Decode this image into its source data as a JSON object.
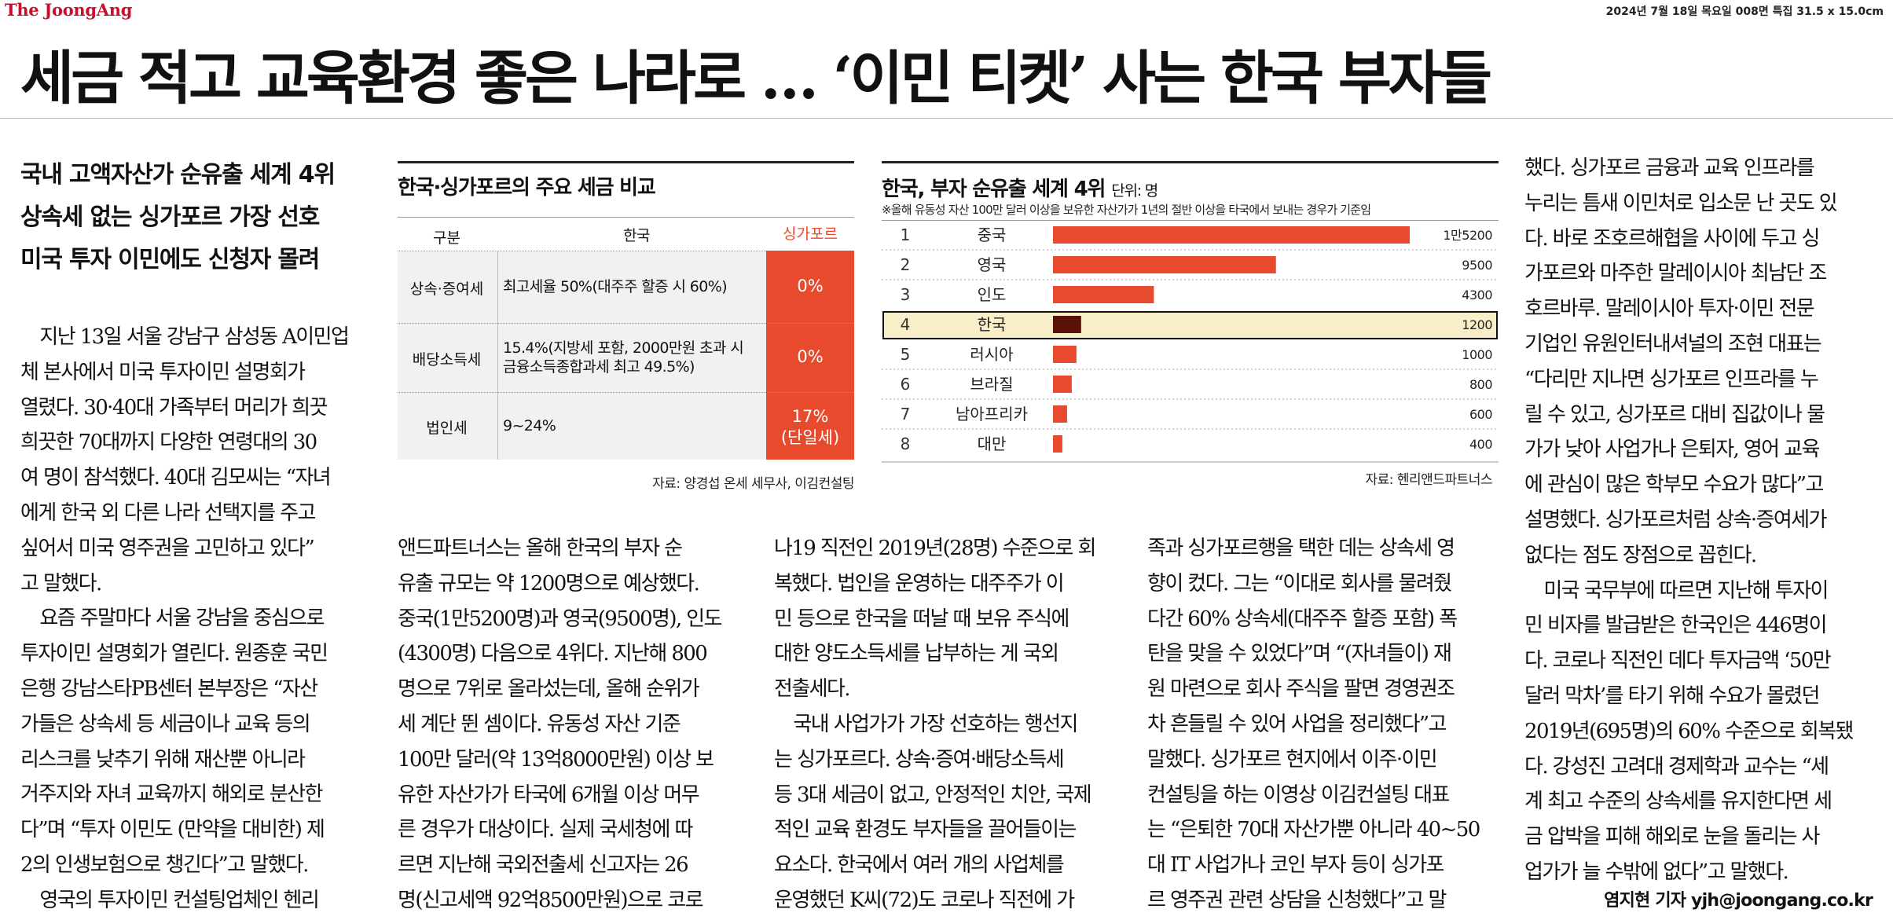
{
  "masthead": {
    "brand": "The JoongAng",
    "dateline": "2024년 7월 18일 목요일 008면 특집 31.5 x 15.0cm"
  },
  "headline": "세금 적고 교육환경 좋은 나라로 … ‘이민 티켓’ 사는 한국 부자들",
  "subheads": [
    "국내 고액자산가 순유출 세계 4위",
    "상속세 없는 싱가포르 가장 선호",
    "미국 투자 이민에도 신청자 몰려"
  ],
  "body": {
    "col1": [
      "　지난 13일 서울 강남구 삼성동 A이민업",
      "체 본사에서 미국 투자이민 설명회가",
      "열렸다. 30·40대 가족부터 머리가 희끗",
      "희끗한 70대까지 다양한 연령대의 30",
      "여 명이 참석했다. 40대 김모씨는 “자녀",
      "에게 한국 외 다른 나라 선택지를 주고",
      "싶어서 미국 영주권을 고민하고 있다”",
      "고 말했다.",
      "　요즘 주말마다 서울 강남을 중심으로",
      "투자이민 설명회가 열린다. 원종훈 국민",
      "은행 강남스타PB센터 본부장은 “자산",
      "가들은 상속세 등 세금이나 교육 등의",
      "리스크를 낮추기 위해 재산뿐 아니라",
      "거주지와 자녀 교육까지 해외로 분산한",
      "다”며 “투자 이민도 (만약을 대비한) 제",
      "2의 인생보험으로 챙긴다”고 말했다.",
      "　영국의 투자이민 컨설팅업체인 헨리"
    ],
    "col2": [
      "앤드파트너스는 올해 한국의 부자 순",
      "유출 규모는 약 1200명으로 예상했다.",
      "중국(1만5200명)과 영국(9500명), 인도",
      "(4300명) 다음으로 4위다. 지난해 800",
      "명으로 7위로 올라섰는데, 올해 순위가",
      "세 계단 뛴 셈이다. 유동성 자산 기준",
      "100만 달러(약 13억8000만원) 이상 보",
      "유한 자산가가 타국에 6개월 이상 머무",
      "른 경우가 대상이다. 실제 국세청에 따",
      "르면 지난해 국외전출세 신고자는 26",
      "명(신고세액 92억8500만원)으로 코로"
    ],
    "col3": [
      "나19 직전인 2019년(28명) 수준으로 회",
      "복했다. 법인을 운영하는 대주주가 이",
      "민 등으로 한국을 떠날 때 보유 주식에",
      "대한 양도소득세를 납부하는 게 국외",
      "전출세다.",
      "　국내 사업가가 가장 선호하는 행선지",
      "는 싱가포르다. 상속·증여·배당소득세",
      "등 3대 세금이 없고, 안정적인 치안, 국제",
      "적인 교육 환경도 부자들을 끌어들이는",
      "요소다. 한국에서 여러 개의 사업체를",
      "운영했던 K씨(72)도 코로나 직전에 가"
    ],
    "col4": [
      "족과 싱가포르행을 택한 데는 상속세 영",
      "향이 컸다. 그는 “이대로 회사를 물려줬",
      "다간 60% 상속세(대주주 할증 포함) 폭",
      "탄을 맞을 수 있었다”며 “(자녀들이) 재",
      "원 마련으로 회사 주식을 팔면 경영권조",
      "차 흔들릴 수 있어 사업을 정리했다”고",
      "말했다. 싱가포르 현지에서 이주·이민",
      "컨설팅을 하는 이영상 이김컨설팅 대표",
      "는 “은퇴한 70대 자산가뿐 아니라 40~50",
      "대 IT 사업가나 코인 부자 등이 싱가포",
      "르 영주권 관련 상담을 신청했다”고 말"
    ],
    "col5": [
      "했다. 싱가포르 금융과 교육 인프라를",
      "누리는 틈새 이민처로 입소문 난 곳도 있",
      "다. 바로 조호르해협을 사이에 두고 싱",
      "가포르와 마주한 말레이시아 최남단 조",
      "호르바루. 말레이시아 투자·이민 전문",
      "기업인 유원인터내셔널의 조현 대표는",
      "“다리만 지나면 싱가포르 인프라를 누",
      "릴 수 있고, 싱가포르 대비 집값이나 물",
      "가가 낮아 사업가나 은퇴자, 영어 교육",
      "에 관심이 많은 학부모 수요가 많다”고",
      "설명했다. 싱가포르처럼 상속·증여세가",
      "없다는 점도 장점으로 꼽힌다.",
      "　미국 국무부에 따르면 지난해 투자이",
      "민 비자를 발급받은 한국인은 446명이",
      "다. 코로나 직전인 데다 투자금액 ‘50만",
      "달러 막차’를 타기 위해 수요가 몰렸던",
      "2019년(695명)의 60% 수준으로 회복됐",
      "다. 강성진 고려대 경제학과 교수는 “세",
      "계 최고 수준의 상속세를 유지한다면 세",
      "금 압박을 피해 해외로 눈을 돌리는 사",
      "업가가 늘 수밖에 없다”고 말했다."
    ]
  },
  "byline": "염지현 기자 yjh@joongang.co.kr",
  "tax_table": {
    "title": "한국·싱가포르의 주요 세금 비교",
    "headers": [
      "구분",
      "한국",
      "싱가포르"
    ],
    "rows": [
      {
        "label": "상속·증여세",
        "korea": "최고세율 50%(대주주 할증 시 60%)",
        "sg": "0%",
        "sg2": ""
      },
      {
        "label": "배당소득세",
        "korea": "15.4%(지방세 포함, 2000만원 초과 시",
        "korea2": "금융소득종합과세 최고 49.5%)",
        "sg": "0%",
        "sg2": ""
      },
      {
        "label": "법인세",
        "korea": "9~24%",
        "sg": "17%",
        "sg2": "(단일세)"
      }
    ],
    "source": "자료: 양경섭 온세 세무사, 이김컨설팅",
    "accent": "#e84a2d"
  },
  "chart_data": {
    "type": "bar",
    "orientation": "horizontal",
    "title": "한국, 부자 순유출 세계 4위",
    "unit": "단위: 명",
    "note": "※올해 유동성 자산 100만 달러 이상을 보유한 자산가가 1년의 절반 이상을 타국에서 보내는 경우가 기준임",
    "ranks": [
      "1",
      "2",
      "3",
      "4",
      "5",
      "6",
      "7",
      "8"
    ],
    "categories": [
      "중국",
      "영국",
      "인도",
      "한국",
      "러시아",
      "브라질",
      "남아프리카",
      "대만"
    ],
    "values": [
      15200,
      9500,
      4300,
      1200,
      1000,
      800,
      600,
      400
    ],
    "value_labels": [
      "1만5200",
      "9500",
      "4300",
      "1200",
      "1000",
      "800",
      "600",
      "400"
    ],
    "highlight": "한국",
    "xlim": [
      0,
      15200
    ],
    "source": "자료: 헨리앤드파트너스",
    "colors": {
      "bar": "#e84a2d",
      "highlight_bar": "#5a1208",
      "highlight_row": "#f8efc9"
    }
  }
}
